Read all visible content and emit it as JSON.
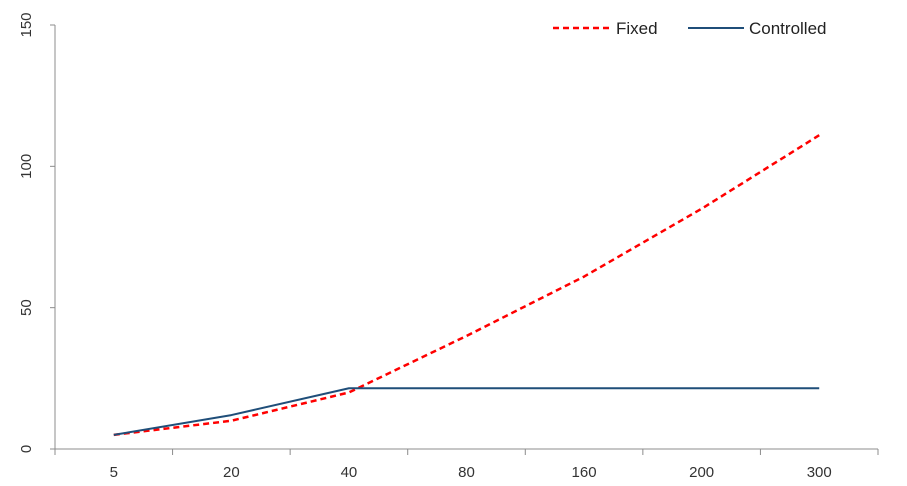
{
  "chart_data": {
    "type": "line",
    "title": "",
    "xlabel": "",
    "ylabel": "",
    "categories": [
      "5",
      "20",
      "40",
      "80",
      "160",
      "200",
      "300"
    ],
    "ylim": [
      0,
      150
    ],
    "yticks": [
      0,
      50,
      100,
      150
    ],
    "grid": false,
    "legend_position": "top-right",
    "series": [
      {
        "name": "Fixed",
        "style": "dashed",
        "color": "#ff0000",
        "values": [
          5,
          10,
          20,
          40,
          61,
          85,
          111
        ]
      },
      {
        "name": "Controlled",
        "style": "solid",
        "color": "#1f4e79",
        "values": [
          5,
          12,
          21.5,
          21.5,
          21.5,
          21.5,
          21.5
        ]
      }
    ]
  }
}
